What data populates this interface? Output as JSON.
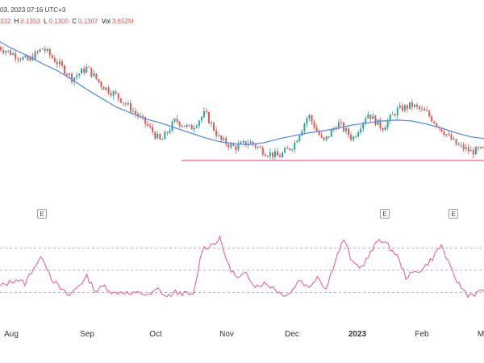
{
  "header": {
    "title_fragment": "03, 2023 07:16 UTC+3",
    "open_fragment": "332",
    "high_label": "H",
    "high_value": "0.1353",
    "low_label": "L",
    "low_value": "0.1300",
    "close_label": "C",
    "close_value": "0.1307",
    "volume_label": "Vol",
    "volume_value": "3.652M"
  },
  "colors": {
    "up_candle": "#26a69a",
    "down_candle": "#ef5350",
    "moving_average": "#5b8def",
    "support_line": "#f06292",
    "oscillator": "#f06292",
    "reference_lines": "#9e9e9e"
  },
  "chart_data": [
    {
      "type": "candlestick",
      "title": "",
      "indicators": [
        "moving average",
        "horizontal line"
      ],
      "x_tick_labels": [
        "Aug",
        "Sep",
        "Oct",
        "Nov",
        "Dec",
        "2023",
        "Feb",
        "M"
      ],
      "earnings_markers": [
        "E",
        "E",
        "E"
      ],
      "legend_position": "top-left",
      "grid": false,
      "close_trend": [
        0.245,
        0.238,
        0.231,
        0.244,
        0.229,
        0.213,
        0.224,
        0.206,
        0.196,
        0.182,
        0.167,
        0.149,
        0.171,
        0.162,
        0.178,
        0.151,
        0.143,
        0.149,
        0.139,
        0.134,
        0.146,
        0.176,
        0.148,
        0.168,
        0.152,
        0.178,
        0.163,
        0.181,
        0.186,
        0.178,
        0.162,
        0.146,
        0.139,
        0.141
      ],
      "moving_average_trend": [
        0.251,
        0.243,
        0.236,
        0.228,
        0.221,
        0.212,
        0.202,
        0.193,
        0.184,
        0.178,
        0.172,
        0.168,
        0.163,
        0.158,
        0.153,
        0.149,
        0.147,
        0.146,
        0.148,
        0.152,
        0.155,
        0.158,
        0.16,
        0.163,
        0.166,
        0.168,
        0.17,
        0.171,
        0.17,
        0.167,
        0.163,
        0.158,
        0.154,
        0.152
      ],
      "support_level": 0.13
    },
    {
      "type": "line",
      "title": "",
      "reference_levels": [
        70,
        50,
        30
      ],
      "values": [
        35,
        38,
        42,
        38,
        53,
        62,
        43,
        33,
        27,
        36,
        44,
        31,
        36,
        29,
        31,
        28,
        30,
        27,
        33,
        26,
        30,
        29,
        27,
        69,
        73,
        78,
        54,
        42,
        47,
        36,
        38,
        35,
        28,
        30,
        42,
        34,
        45,
        33,
        59,
        78,
        56,
        53,
        65,
        79,
        72,
        63,
        44,
        48,
        52,
        61,
        73,
        52,
        37,
        28,
        29,
        33
      ]
    }
  ]
}
